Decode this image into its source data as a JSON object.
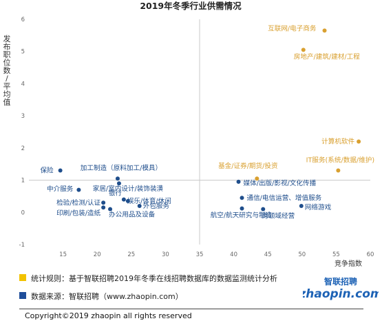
{
  "chart_data": {
    "type": "scatter",
    "title": "2019年冬季行业供需情况",
    "xlabel": "竞争指数",
    "ylabel": "发布职位数/平均值",
    "xlim": [
      10,
      60
    ],
    "ylim": [
      -1,
      6
    ],
    "xticks": [
      15,
      20,
      25,
      30,
      35,
      40,
      45,
      50,
      55,
      60
    ],
    "yticks": [
      -1,
      0,
      1,
      2,
      3,
      4,
      5,
      6
    ],
    "xtick_labels": [
      "15",
      "20",
      "25",
      "30",
      "35",
      "40",
      "45",
      "50",
      "55",
      "60"
    ],
    "ytick_labels": [
      "-1",
      "0",
      "1",
      "2",
      "3",
      "4",
      "5",
      "6"
    ],
    "quadrant_lines": {
      "x": 35,
      "y": 1
    },
    "colors": {
      "high": "#d9a030",
      "normal": "#1f4e8c"
    },
    "points": [
      {
        "label": "互联网/电子商务",
        "x": 53.3,
        "y": 5.65,
        "group": "high"
      },
      {
        "label": "房地产/建筑/建材/工程",
        "x": 50.2,
        "y": 5.05,
        "group": "high"
      },
      {
        "label": "计算机软件",
        "x": 58.3,
        "y": 2.2,
        "group": "high"
      },
      {
        "label": "IT服务(系统/数据/维护)",
        "x": 55.3,
        "y": 1.3,
        "group": "high"
      },
      {
        "label": "基金/证券/期货/投资",
        "x": 43.4,
        "y": 1.05,
        "group": "high"
      },
      {
        "label": "保险",
        "x": 14.6,
        "y": 1.3,
        "group": "normal"
      },
      {
        "label": "加工制造（原料加工/模具）",
        "x": 23.0,
        "y": 1.05,
        "group": "normal"
      },
      {
        "label": "中介服务",
        "x": 17.3,
        "y": 0.7,
        "group": "normal"
      },
      {
        "label": "家居/室内设计/装饰装潢",
        "x": 23.2,
        "y": 0.9,
        "group": "normal"
      },
      {
        "label": "银行",
        "x": 23.9,
        "y": 0.4,
        "group": "normal"
      },
      {
        "label": "检验/检测/认证",
        "x": 20.9,
        "y": 0.3,
        "group": "normal"
      },
      {
        "label": "娱乐/体育/休闲",
        "x": 24.5,
        "y": 0.35,
        "group": "normal"
      },
      {
        "label": "外包服务",
        "x": 26.2,
        "y": 0.2,
        "group": "normal"
      },
      {
        "label": "印刷/包装/造纸",
        "x": 20.9,
        "y": 0.15,
        "group": "normal"
      },
      {
        "label": "办公用品及设备",
        "x": 21.9,
        "y": 0.1,
        "group": "normal"
      },
      {
        "label": "媒体/出版/影视/文化传播",
        "x": 40.7,
        "y": 0.95,
        "group": "normal"
      },
      {
        "label": "通信/电信运营、增值服务",
        "x": 41.2,
        "y": 0.45,
        "group": "normal"
      },
      {
        "label": "航空/航天研究与制造",
        "x": 41.2,
        "y": 0.12,
        "group": "normal"
      },
      {
        "label": "跨领域经营",
        "x": 44.3,
        "y": 0.1,
        "group": "normal"
      },
      {
        "label": "网络游戏",
        "x": 49.9,
        "y": 0.2,
        "group": "normal"
      }
    ]
  },
  "notes": [
    {
      "text": "统计规则：基于智联招聘2019年冬季在线招聘数据库的数据监测统计分析",
      "color": "#f2c200"
    },
    {
      "text": "数据来源：智联招聘（www.zhaopin.com）",
      "color": "#1f4e9a"
    }
  ],
  "logo": {
    "brand": "智联招聘",
    "domain": "zhaopin.com"
  },
  "footer": {
    "copyright": "Copyright©2019 zhaopin all rights reserved"
  }
}
